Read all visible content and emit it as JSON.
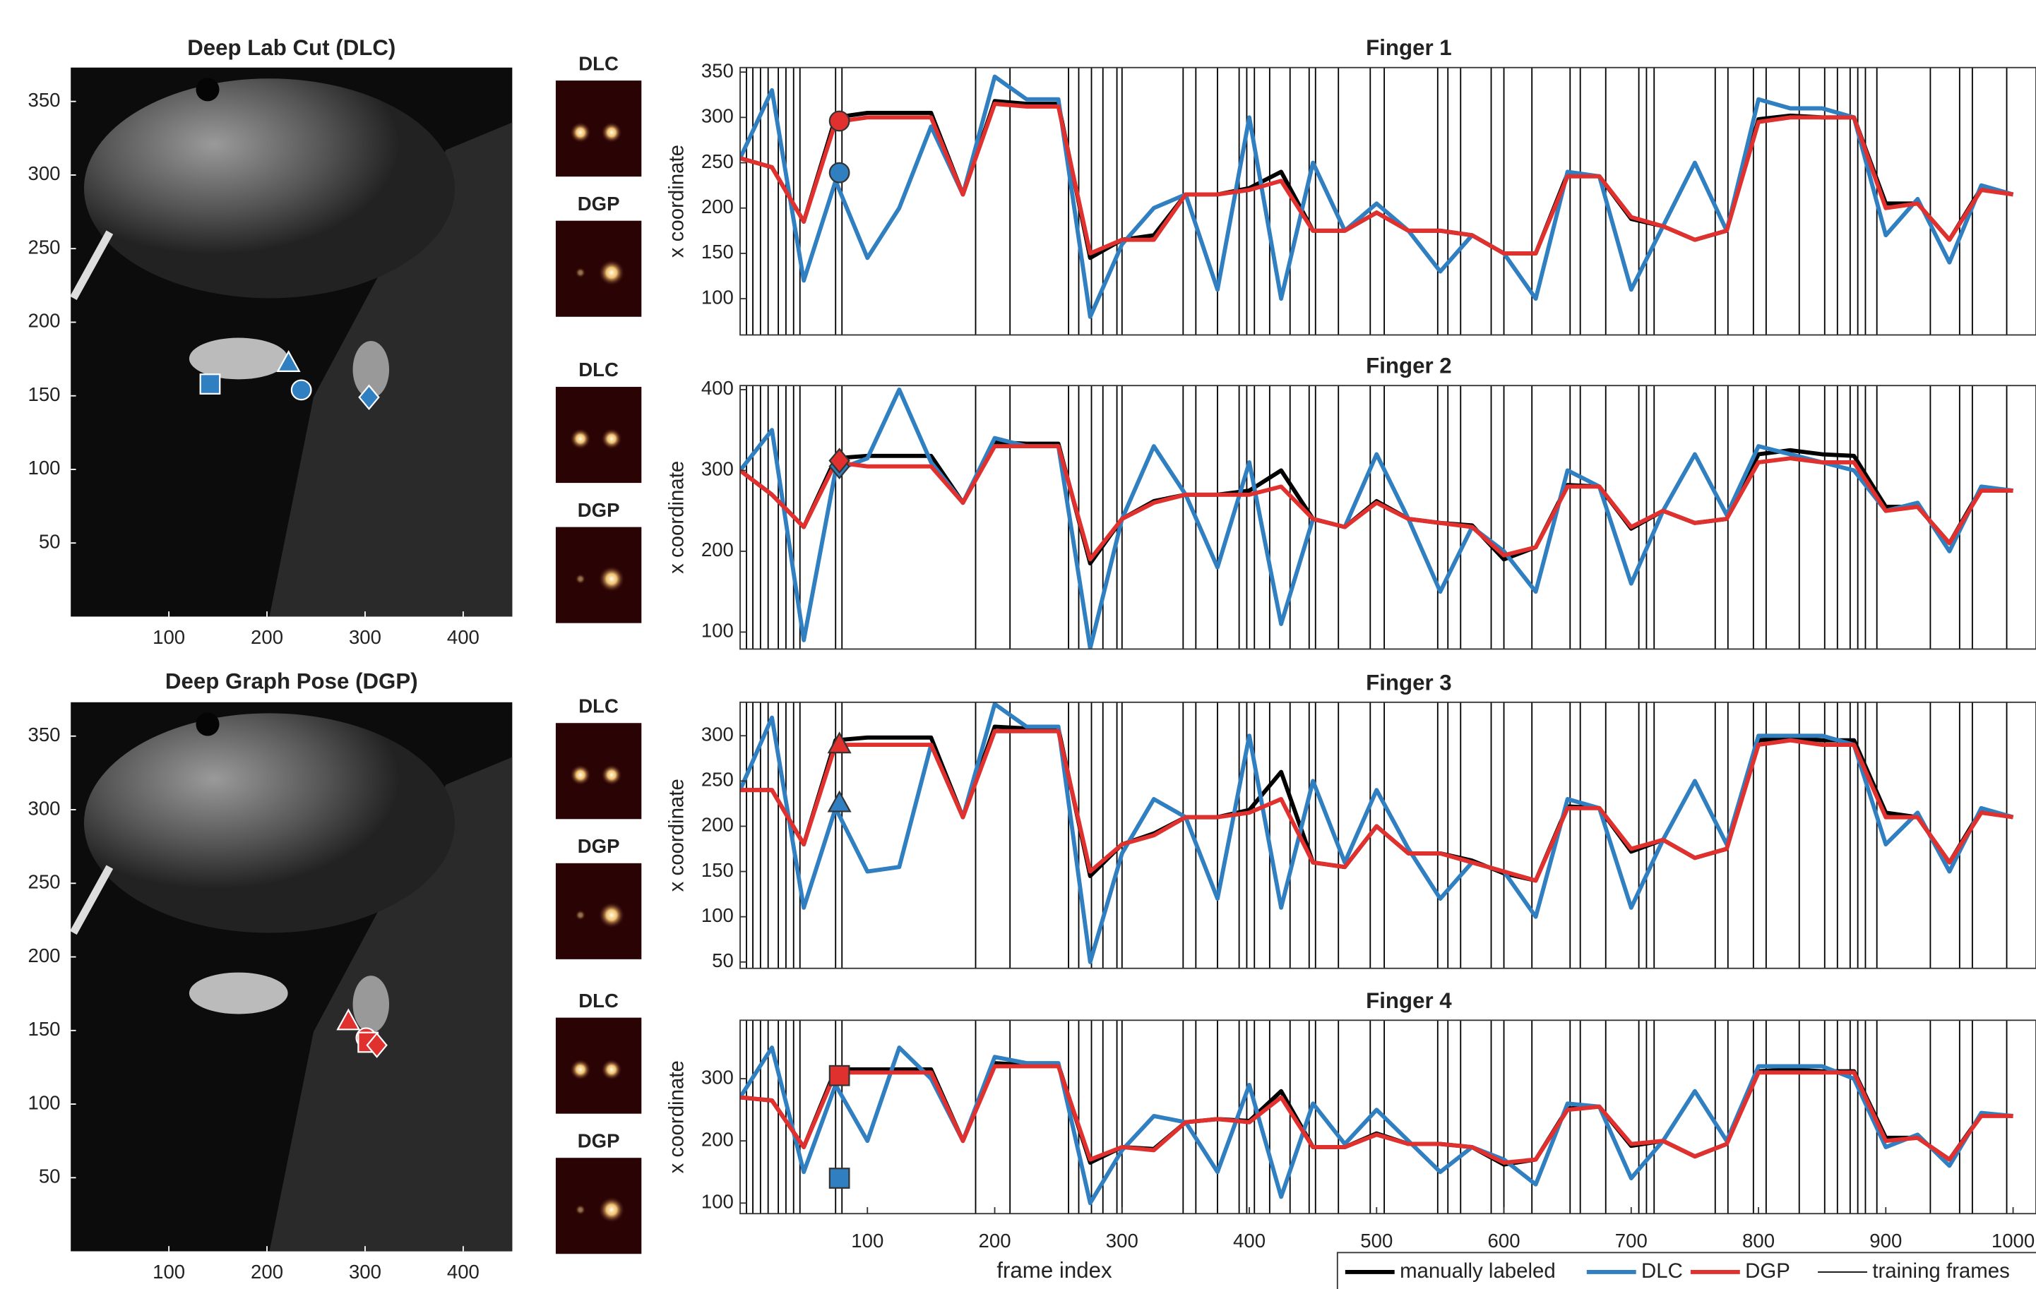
{
  "thumbnails": [
    "DLC",
    "DGP",
    "DLC",
    "DGP",
    "DLC",
    "DGP",
    "DLC",
    "DGP"
  ],
  "chart_data": [
    {
      "type": "image",
      "title": "Deep Lab Cut (DLC)",
      "xlim": [
        0,
        450
      ],
      "ylim": [
        0,
        373
      ],
      "xticks": [
        100,
        200,
        300,
        400
      ],
      "yticks": [
        50,
        100,
        150,
        200,
        250,
        300,
        350
      ],
      "markers": [
        {
          "shape": "square",
          "color": "#2f7fc1",
          "x": 142,
          "y": 158
        },
        {
          "shape": "triangle",
          "color": "#2f7fc1",
          "x": 222,
          "y": 172
        },
        {
          "shape": "circle",
          "color": "#2f7fc1",
          "x": 235,
          "y": 154
        },
        {
          "shape": "diamond",
          "color": "#2f7fc1",
          "x": 304,
          "y": 149
        }
      ]
    },
    {
      "type": "image",
      "title": "Deep Graph Pose (DGP)",
      "xlim": [
        0,
        450
      ],
      "ylim": [
        0,
        373
      ],
      "xticks": [
        100,
        200,
        300,
        400
      ],
      "yticks": [
        50,
        100,
        150,
        200,
        250,
        300,
        350
      ],
      "markers": [
        {
          "shape": "triangle",
          "color": "#e0312f",
          "x": 283,
          "y": 156
        },
        {
          "shape": "circle",
          "color": "#e0312f",
          "x": 301,
          "y": 145
        },
        {
          "shape": "square",
          "color": "#e0312f",
          "x": 303,
          "y": 142
        },
        {
          "shape": "diamond",
          "color": "#e0312f",
          "x": 312,
          "y": 140
        }
      ]
    },
    {
      "type": "line",
      "title": "Finger 1",
      "ylabel": "x coordinate",
      "xlim": [
        0,
        1018
      ],
      "ylim": [
        60,
        355
      ],
      "yticks": [
        100,
        150,
        200,
        250,
        300,
        350
      ],
      "x": [
        0,
        25,
        50,
        75,
        100,
        125,
        150,
        175,
        200,
        225,
        250,
        275,
        300,
        325,
        350,
        375,
        400,
        425,
        450,
        475,
        500,
        525,
        550,
        575,
        600,
        625,
        650,
        675,
        700,
        725,
        750,
        775,
        800,
        825,
        850,
        875,
        900,
        925,
        950,
        975,
        1000
      ],
      "series": [
        {
          "color": "#000000",
          "values": [
            255,
            245,
            185,
            300,
            305,
            305,
            305,
            215,
            318,
            315,
            315,
            145,
            165,
            170,
            215,
            215,
            222,
            240,
            175,
            175,
            195,
            175,
            175,
            170,
            150,
            150,
            238,
            235,
            188,
            180,
            165,
            175,
            298,
            302,
            300,
            300,
            205,
            205,
            165,
            222,
            215
          ]
        },
        {
          "color": "#2f7fc1",
          "values": [
            255,
            330,
            120,
            230,
            145,
            200,
            290,
            215,
            345,
            320,
            320,
            80,
            160,
            200,
            215,
            110,
            300,
            100,
            250,
            175,
            205,
            175,
            130,
            170,
            150,
            100,
            240,
            235,
            110,
            180,
            250,
            175,
            320,
            310,
            310,
            300,
            170,
            210,
            140,
            225,
            215
          ]
        },
        {
          "color": "#e0312f",
          "values": [
            255,
            245,
            185,
            295,
            300,
            300,
            300,
            215,
            315,
            312,
            312,
            150,
            165,
            165,
            215,
            215,
            220,
            230,
            175,
            175,
            195,
            175,
            175,
            170,
            150,
            150,
            235,
            235,
            190,
            180,
            165,
            175,
            295,
            300,
            300,
            300,
            200,
            205,
            165,
            220,
            215
          ]
        }
      ],
      "markers": [
        {
          "shape": "circle",
          "color": "#e0312f",
          "x": 78,
          "y": 296
        },
        {
          "shape": "circle",
          "color": "#2f7fc1",
          "x": 78,
          "y": 239
        }
      ],
      "training_frames": {
        "x": [
          5,
          10,
          16,
          22,
          30,
          36,
          42,
          47,
          75,
          80,
          185,
          212,
          258,
          266,
          276,
          285,
          296,
          300,
          348,
          358,
          375,
          392,
          398,
          404,
          416,
          432,
          447,
          452,
          470,
          495,
          506,
          548,
          556,
          566,
          590,
          600,
          622,
          652,
          660,
          680,
          706,
          712,
          718,
          766,
          776,
          796,
          806,
          832,
          852,
          862,
          872,
          878,
          884,
          893,
          935,
          958,
          968,
          995
        ]
      }
    },
    {
      "type": "line",
      "title": "Finger 2",
      "ylabel": "x coordinate",
      "xlim": [
        0,
        1018
      ],
      "ylim": [
        79,
        405
      ],
      "yticks": [
        100,
        200,
        300,
        400
      ],
      "x": [
        0,
        25,
        50,
        75,
        100,
        125,
        150,
        175,
        200,
        225,
        250,
        275,
        300,
        325,
        350,
        375,
        400,
        425,
        450,
        475,
        500,
        525,
        550,
        575,
        600,
        625,
        650,
        675,
        700,
        725,
        750,
        775,
        800,
        825,
        850,
        875,
        900,
        925,
        950,
        975,
        1000
      ],
      "series": [
        {
          "color": "#000000",
          "values": [
            300,
            270,
            230,
            315,
            318,
            318,
            318,
            260,
            335,
            333,
            333,
            185,
            240,
            262,
            270,
            270,
            275,
            300,
            240,
            230,
            262,
            240,
            235,
            232,
            190,
            205,
            282,
            280,
            228,
            250,
            235,
            240,
            320,
            325,
            320,
            318,
            255,
            255,
            210,
            278,
            275
          ]
        },
        {
          "color": "#2f7fc1",
          "values": [
            300,
            350,
            90,
            300,
            315,
            400,
            310,
            260,
            340,
            330,
            330,
            80,
            240,
            330,
            270,
            180,
            310,
            110,
            240,
            230,
            320,
            240,
            150,
            230,
            200,
            150,
            300,
            280,
            160,
            250,
            320,
            245,
            330,
            320,
            310,
            300,
            250,
            260,
            200,
            280,
            275
          ]
        },
        {
          "color": "#e0312f",
          "values": [
            300,
            270,
            230,
            310,
            305,
            305,
            305,
            260,
            330,
            330,
            330,
            190,
            240,
            260,
            270,
            270,
            270,
            280,
            240,
            230,
            260,
            240,
            235,
            230,
            195,
            205,
            280,
            280,
            230,
            250,
            235,
            240,
            310,
            315,
            310,
            310,
            250,
            255,
            210,
            275,
            275
          ]
        }
      ],
      "markers": [
        {
          "shape": "diamond",
          "color": "#2f7fc1",
          "x": 78,
          "y": 305
        },
        {
          "shape": "diamond",
          "color": "#e0312f",
          "x": 78,
          "y": 312
        }
      ],
      "training_frames": {
        "x": [
          5,
          10,
          16,
          22,
          30,
          36,
          42,
          47,
          75,
          80,
          185,
          212,
          258,
          266,
          276,
          285,
          296,
          300,
          348,
          358,
          375,
          392,
          398,
          404,
          416,
          432,
          447,
          452,
          470,
          495,
          506,
          548,
          556,
          566,
          590,
          600,
          622,
          652,
          660,
          680,
          706,
          712,
          718,
          766,
          776,
          796,
          806,
          832,
          852,
          862,
          872,
          878,
          884,
          893,
          935,
          958,
          968,
          995
        ]
      }
    },
    {
      "type": "line",
      "title": "Finger 3",
      "ylabel": "x coordinate",
      "xlim": [
        0,
        1018
      ],
      "ylim": [
        43,
        337
      ],
      "yticks": [
        50,
        100,
        150,
        200,
        250,
        300
      ],
      "x": [
        0,
        25,
        50,
        75,
        100,
        125,
        150,
        175,
        200,
        225,
        250,
        275,
        300,
        325,
        350,
        375,
        400,
        425,
        450,
        475,
        500,
        525,
        550,
        575,
        600,
        625,
        650,
        675,
        700,
        725,
        750,
        775,
        800,
        825,
        850,
        875,
        900,
        925,
        950,
        975,
        1000
      ],
      "series": [
        {
          "color": "#000000",
          "values": [
            240,
            240,
            180,
            295,
            298,
            298,
            298,
            210,
            310,
            308,
            308,
            145,
            180,
            192,
            210,
            210,
            218,
            260,
            160,
            155,
            200,
            170,
            170,
            162,
            148,
            140,
            222,
            220,
            172,
            185,
            165,
            175,
            295,
            298,
            295,
            295,
            215,
            210,
            160,
            218,
            210
          ]
        },
        {
          "color": "#2f7fc1",
          "values": [
            240,
            320,
            110,
            220,
            150,
            155,
            290,
            210,
            335,
            310,
            310,
            50,
            170,
            230,
            210,
            120,
            300,
            110,
            250,
            160,
            240,
            175,
            120,
            160,
            150,
            100,
            230,
            220,
            110,
            185,
            250,
            180,
            300,
            300,
            300,
            290,
            180,
            215,
            150,
            220,
            210
          ]
        },
        {
          "color": "#e0312f",
          "values": [
            240,
            240,
            180,
            290,
            290,
            290,
            290,
            210,
            305,
            305,
            305,
            150,
            180,
            190,
            210,
            210,
            215,
            230,
            160,
            155,
            200,
            170,
            170,
            160,
            150,
            140,
            220,
            220,
            175,
            185,
            165,
            175,
            290,
            295,
            290,
            290,
            210,
            210,
            160,
            215,
            210
          ]
        }
      ],
      "markers": [
        {
          "shape": "triangle",
          "color": "#e0312f",
          "x": 78,
          "y": 290
        },
        {
          "shape": "triangle",
          "color": "#2f7fc1",
          "x": 78,
          "y": 225
        }
      ],
      "training_frames": {
        "x": [
          5,
          10,
          16,
          22,
          30,
          36,
          42,
          47,
          75,
          80,
          185,
          212,
          258,
          266,
          276,
          285,
          296,
          300,
          348,
          358,
          375,
          392,
          398,
          404,
          416,
          432,
          447,
          452,
          470,
          495,
          506,
          548,
          556,
          566,
          590,
          600,
          622,
          652,
          660,
          680,
          706,
          712,
          718,
          766,
          776,
          796,
          806,
          832,
          852,
          862,
          872,
          878,
          884,
          893,
          935,
          958,
          968,
          995
        ]
      }
    },
    {
      "type": "line",
      "title": "Finger 4",
      "ylabel": "x coordinate",
      "xlabel": "frame index",
      "xlim": [
        0,
        1018
      ],
      "ylim": [
        83,
        394
      ],
      "yticks": [
        100,
        200,
        300
      ],
      "xticks": [
        100,
        200,
        300,
        400,
        500,
        600,
        700,
        800,
        900,
        1000
      ],
      "x": [
        0,
        25,
        50,
        75,
        100,
        125,
        150,
        175,
        200,
        225,
        250,
        275,
        300,
        325,
        350,
        375,
        400,
        425,
        450,
        475,
        500,
        525,
        550,
        575,
        600,
        625,
        650,
        675,
        700,
        725,
        750,
        775,
        800,
        825,
        850,
        875,
        900,
        925,
        950,
        975,
        1000
      ],
      "series": [
        {
          "name": "manually labeled",
          "color": "#000000",
          "values": [
            270,
            265,
            190,
            315,
            315,
            315,
            315,
            200,
            325,
            322,
            322,
            165,
            190,
            187,
            230,
            235,
            232,
            280,
            190,
            190,
            212,
            195,
            195,
            190,
            162,
            170,
            252,
            255,
            192,
            200,
            175,
            195,
            312,
            315,
            312,
            312,
            205,
            205,
            170,
            242,
            240
          ]
        },
        {
          "name": "DLC",
          "color": "#2f7fc1",
          "values": [
            270,
            350,
            150,
            290,
            200,
            350,
            300,
            200,
            335,
            325,
            325,
            100,
            185,
            240,
            230,
            150,
            290,
            110,
            260,
            195,
            250,
            200,
            150,
            190,
            170,
            130,
            260,
            255,
            140,
            200,
            280,
            200,
            320,
            320,
            320,
            300,
            190,
            210,
            160,
            245,
            240
          ]
        },
        {
          "name": "DGP",
          "color": "#e0312f",
          "values": [
            270,
            265,
            190,
            310,
            310,
            310,
            310,
            200,
            320,
            320,
            320,
            170,
            190,
            185,
            230,
            235,
            230,
            270,
            190,
            190,
            210,
            195,
            195,
            190,
            165,
            170,
            250,
            255,
            195,
            200,
            175,
            195,
            310,
            310,
            310,
            310,
            200,
            205,
            170,
            240,
            240
          ]
        }
      ],
      "markers": [
        {
          "shape": "square",
          "color": "#e0312f",
          "x": 78,
          "y": 305
        },
        {
          "shape": "square",
          "color": "#2f7fc1",
          "x": 78,
          "y": 140
        }
      ],
      "training_frames": {
        "name": "training frames",
        "x": [
          5,
          10,
          16,
          22,
          30,
          36,
          42,
          47,
          75,
          80,
          185,
          212,
          258,
          266,
          276,
          285,
          296,
          300,
          348,
          358,
          375,
          392,
          398,
          404,
          416,
          432,
          447,
          452,
          470,
          495,
          506,
          548,
          556,
          566,
          590,
          600,
          622,
          652,
          660,
          680,
          706,
          712,
          718,
          766,
          776,
          796,
          806,
          832,
          852,
          862,
          872,
          878,
          884,
          893,
          935,
          958,
          968,
          995
        ]
      }
    }
  ]
}
